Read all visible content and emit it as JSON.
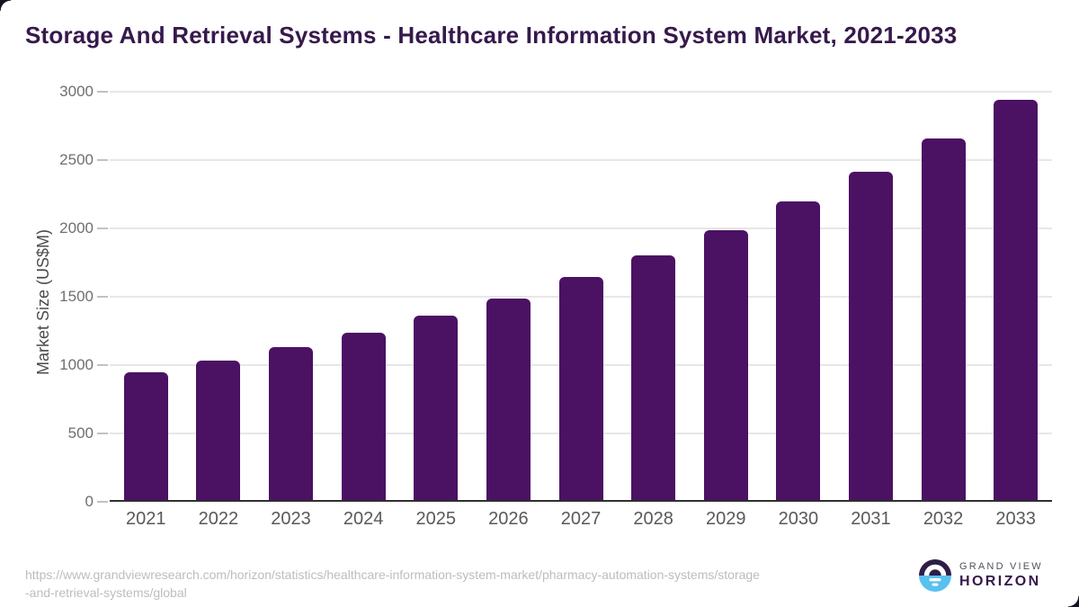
{
  "title": "Storage And Retrieval Systems - Healthcare Information System Market, 2021-2033",
  "chart_data": {
    "type": "bar",
    "categories": [
      "2021",
      "2022",
      "2023",
      "2024",
      "2025",
      "2026",
      "2027",
      "2028",
      "2029",
      "2030",
      "2031",
      "2032",
      "2033"
    ],
    "values": [
      950,
      1030,
      1130,
      1235,
      1360,
      1490,
      1645,
      1805,
      1985,
      2195,
      2415,
      2660,
      2940
    ],
    "title": "Storage And Retrieval Systems - Healthcare Information System Market, 2021-2033",
    "xlabel": "",
    "ylabel": "Market Size (US$M)",
    "ylim": [
      0,
      3000
    ],
    "yticks": [
      0,
      500,
      1000,
      1500,
      2000,
      2500,
      3000
    ],
    "grid": true,
    "legend": "none",
    "bar_color": "#4b1163"
  },
  "footer": {
    "source_url_line1": "https://www.grandviewresearch.com/horizon/statistics/healthcare-information-system-market/pharmacy-automation-systems/storage",
    "source_url_line2": "-and-retrieval-systems/global",
    "logo": {
      "top_text": "GRAND VIEW",
      "bottom_text": "HORIZON",
      "icon": "horizon-sun-circle-icon",
      "icon_purple": "#2e1d46",
      "icon_blue": "#58c1f0"
    }
  },
  "colors": {
    "title_text": "#36194c",
    "bar": "#4b1163",
    "gridline": "#e7e7e7",
    "axis_line": "#2f2f2f",
    "tick_text": "#6f6f6f",
    "x_tick_text": "#595959",
    "url_text": "#bdbdbd"
  }
}
